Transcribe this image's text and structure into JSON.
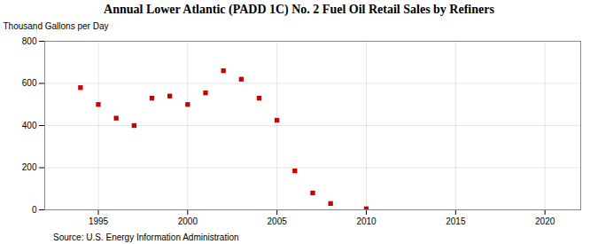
{
  "chart_data": {
    "type": "scatter",
    "title": "Annual Lower Atlantic (PADD 1C) No. 2 Fuel Oil Retail Sales by Refiners",
    "ylabel": "Thousand Gallons per Day",
    "annotation": "Source: U.S. Energy Information Administration",
    "x": [
      1994,
      1995,
      1996,
      1997,
      1998,
      1999,
      2000,
      2001,
      2002,
      2003,
      2004,
      2005,
      2006,
      2007,
      2008,
      2010
    ],
    "values": [
      580,
      500,
      435,
      400,
      530,
      540,
      500,
      555,
      660,
      620,
      530,
      425,
      185,
      80,
      30,
      5
    ],
    "color": "#cc0000",
    "marker": "square",
    "xlim": [
      1992,
      2022
    ],
    "ylim": [
      0,
      800
    ],
    "xticks": [
      1995,
      2000,
      2005,
      2010,
      2015,
      2020
    ],
    "yticks": [
      0,
      200,
      400,
      600,
      800
    ],
    "grid": true
  }
}
